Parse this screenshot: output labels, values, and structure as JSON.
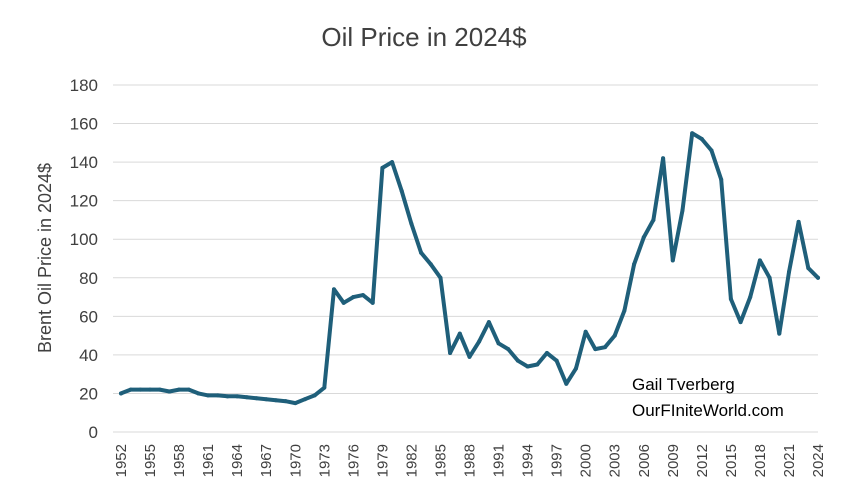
{
  "chart_data": {
    "type": "line",
    "title": "Oil Price in 2024$",
    "xlabel": "",
    "ylabel": "Brent Oil Price in 2024$",
    "ylim": [
      0,
      180
    ],
    "yticks": [
      0,
      20,
      40,
      60,
      80,
      100,
      120,
      140,
      160,
      180
    ],
    "xlim": [
      1952,
      2024
    ],
    "xtick_labels": [
      "1952",
      "1955",
      "1958",
      "1961",
      "1964",
      "1967",
      "1970",
      "1973",
      "1976",
      "1979",
      "1982",
      "1985",
      "1988",
      "1991",
      "1994",
      "1997",
      "2000",
      "2003",
      "2006",
      "2009",
      "2012",
      "2015",
      "2018",
      "2021",
      "2024"
    ],
    "grid": true,
    "line_color": "#1f5f7a",
    "series": [
      {
        "name": "Brent Oil Price in 2024$",
        "x": [
          1952,
          1953,
          1954,
          1955,
          1956,
          1957,
          1958,
          1959,
          1960,
          1961,
          1962,
          1963,
          1964,
          1965,
          1966,
          1967,
          1968,
          1969,
          1970,
          1971,
          1972,
          1973,
          1974,
          1975,
          1976,
          1977,
          1978,
          1979,
          1980,
          1981,
          1982,
          1983,
          1984,
          1985,
          1986,
          1987,
          1988,
          1989,
          1990,
          1991,
          1992,
          1993,
          1994,
          1995,
          1996,
          1997,
          1998,
          1999,
          2000,
          2001,
          2002,
          2003,
          2004,
          2005,
          2006,
          2007,
          2008,
          2009,
          2010,
          2011,
          2012,
          2013,
          2014,
          2015,
          2016,
          2017,
          2018,
          2019,
          2020,
          2021,
          2022,
          2023,
          2024
        ],
        "values": [
          20,
          22,
          22,
          22,
          22,
          21,
          22,
          22,
          20,
          19,
          19,
          18.5,
          18.5,
          18,
          17.5,
          17,
          16.5,
          16,
          15,
          17,
          19,
          23,
          74,
          67,
          70,
          71,
          67,
          137,
          140,
          125,
          108,
          93,
          87,
          80,
          41,
          51,
          39,
          47,
          57,
          46,
          43,
          37,
          34,
          35,
          41,
          37,
          25,
          33,
          52,
          43,
          44,
          50,
          63,
          87,
          101,
          110,
          142,
          89,
          115,
          155,
          152,
          146,
          131,
          69,
          57,
          70,
          89,
          80,
          51,
          83,
          109,
          85,
          80
        ]
      }
    ],
    "annotations": [
      "Gail Tverberg",
      "OurFIniteWorld.com"
    ]
  }
}
